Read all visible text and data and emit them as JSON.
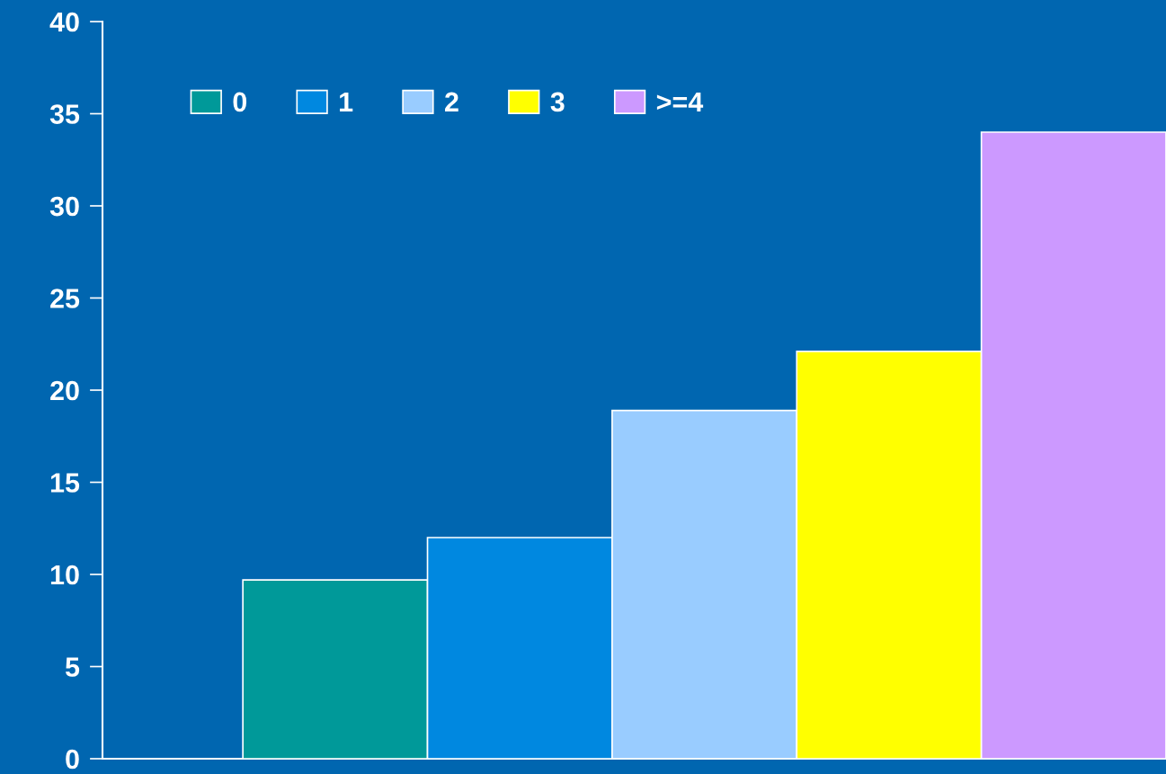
{
  "chart_data": {
    "type": "bar",
    "categories": [
      null
    ],
    "series": [
      {
        "name": "0",
        "color": "#009999",
        "values": [
          9.7
        ]
      },
      {
        "name": "1",
        "color": "#0088e0",
        "values": [
          12.0
        ]
      },
      {
        "name": "2",
        "color": "#99ccff",
        "values": [
          18.9
        ]
      },
      {
        "name": "3",
        "color": "#ffff00",
        "values": [
          22.1
        ]
      },
      {
        "name": ">=4",
        "color": "#cc99ff",
        "values": [
          34.0
        ]
      }
    ],
    "ylim": [
      0,
      40
    ],
    "yticks": [
      0,
      5,
      10,
      15,
      20,
      25,
      30,
      35,
      40
    ],
    "grid": false,
    "legend": "top left",
    "tick_labels": "y"
  }
}
